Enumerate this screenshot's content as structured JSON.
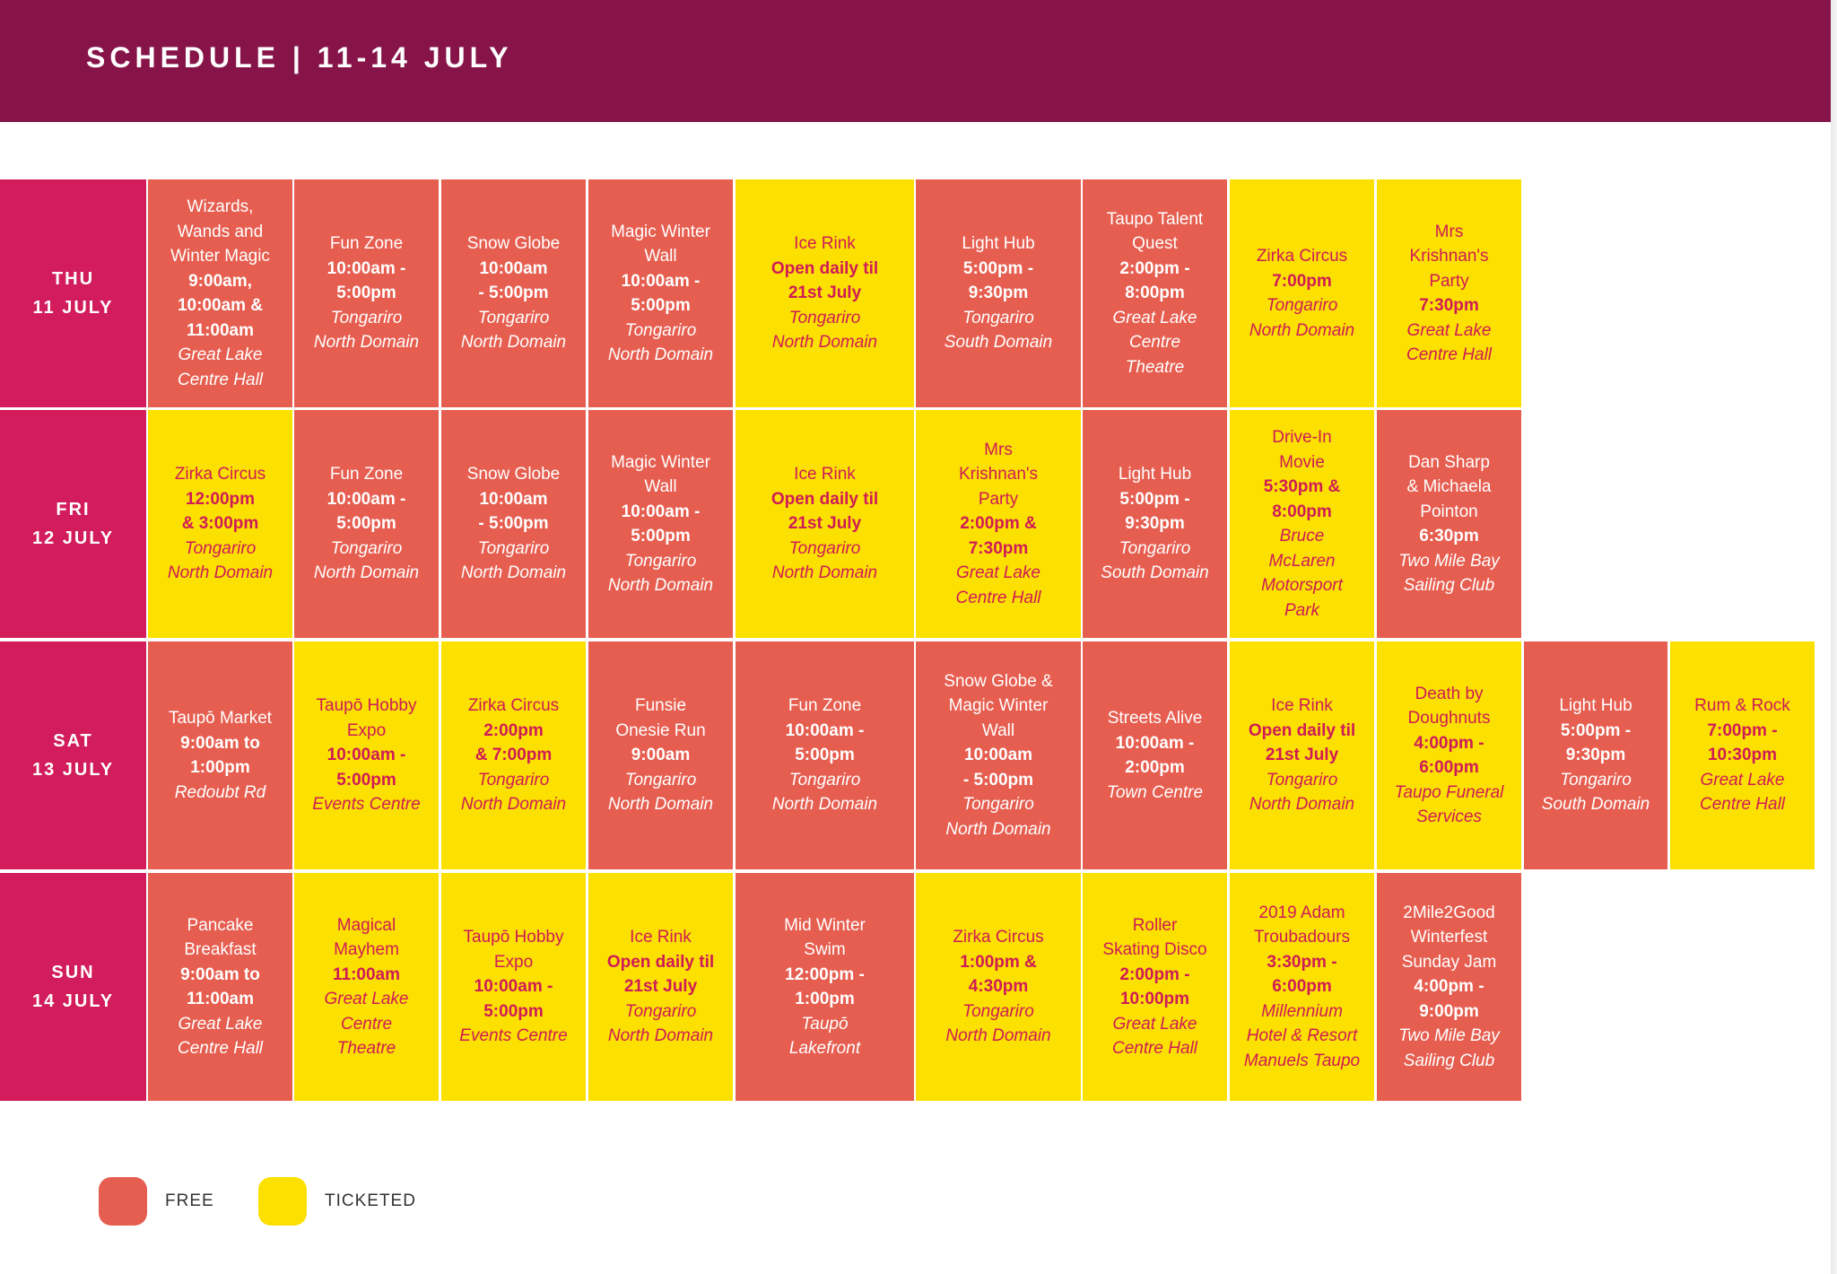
{
  "header": {
    "title": "SCHEDULE | 11-14 JULY"
  },
  "colors": {
    "header_bg": "#861448",
    "day_bg": "#d21c5c",
    "free": "#e65e50",
    "ticketed": "#fce000",
    "ticketed_text": "#cf1b57"
  },
  "days": [
    {
      "day": "THU",
      "date": "11 JULY",
      "events": [
        {
          "type": "free",
          "lines": [
            [
              "n",
              "Wizards,"
            ],
            [
              "n",
              "Wands and"
            ],
            [
              "n",
              "Winter Magic"
            ],
            [
              "t",
              "9:00am,"
            ],
            [
              "t",
              "10:00am &"
            ],
            [
              "t",
              "11:00am"
            ],
            [
              "v",
              "Great Lake"
            ],
            [
              "v",
              "Centre Hall"
            ]
          ]
        },
        {
          "type": "free",
          "lines": [
            [
              "n",
              "Fun Zone"
            ],
            [
              "t",
              "10:00am -"
            ],
            [
              "t",
              "5:00pm"
            ],
            [
              "v",
              "Tongariro"
            ],
            [
              "v",
              "North Domain"
            ]
          ]
        },
        {
          "type": "free",
          "lines": [
            [
              "n",
              "Snow Globe"
            ],
            [
              "t",
              "10:00am"
            ],
            [
              "t",
              "- 5:00pm"
            ],
            [
              "v",
              "Tongariro"
            ],
            [
              "v",
              "North Domain"
            ]
          ]
        },
        {
          "type": "free",
          "lines": [
            [
              "n",
              "Magic Winter"
            ],
            [
              "n",
              "Wall"
            ],
            [
              "t",
              "10:00am -"
            ],
            [
              "t",
              "5:00pm"
            ],
            [
              "v",
              "Tongariro"
            ],
            [
              "v",
              "North Domain"
            ]
          ]
        },
        {
          "type": "ticketed",
          "lines": [
            [
              "n",
              "Ice Rink"
            ],
            [
              "t",
              "Open daily til"
            ],
            [
              "t",
              "21st July"
            ],
            [
              "v",
              "Tongariro"
            ],
            [
              "v",
              "North Domain"
            ]
          ]
        },
        {
          "type": "free",
          "lines": [
            [
              "n",
              "Light Hub"
            ],
            [
              "t",
              "5:00pm -"
            ],
            [
              "t",
              "9:30pm"
            ],
            [
              "v",
              "Tongariro"
            ],
            [
              "v",
              "South Domain"
            ]
          ]
        },
        {
          "type": "free",
          "lines": [
            [
              "n",
              "Taupo Talent"
            ],
            [
              "n",
              "Quest"
            ],
            [
              "t",
              "2:00pm -"
            ],
            [
              "t",
              "8:00pm"
            ],
            [
              "v",
              "Great Lake"
            ],
            [
              "v",
              "Centre"
            ],
            [
              "v",
              "Theatre"
            ]
          ]
        },
        {
          "type": "ticketed",
          "lines": [
            [
              "n",
              "Zirka Circus"
            ],
            [
              "t",
              "7:00pm"
            ],
            [
              "v",
              "Tongariro"
            ],
            [
              "v",
              "North Domain"
            ]
          ]
        },
        {
          "type": "ticketed",
          "lines": [
            [
              "n",
              "Mrs"
            ],
            [
              "n",
              "Krishnan's"
            ],
            [
              "n",
              "Party"
            ],
            [
              "t",
              "7:30pm"
            ],
            [
              "v",
              "Great Lake"
            ],
            [
              "v",
              "Centre Hall"
            ]
          ]
        }
      ]
    },
    {
      "day": "FRI",
      "date": "12 JULY",
      "events": [
        {
          "type": "ticketed",
          "lines": [
            [
              "n",
              "Zirka Circus"
            ],
            [
              "t",
              "12:00pm"
            ],
            [
              "t",
              "& 3:00pm"
            ],
            [
              "v",
              "Tongariro"
            ],
            [
              "v",
              "North Domain"
            ]
          ]
        },
        {
          "type": "free",
          "lines": [
            [
              "n",
              "Fun Zone"
            ],
            [
              "t",
              "10:00am -"
            ],
            [
              "t",
              "5:00pm"
            ],
            [
              "v",
              "Tongariro"
            ],
            [
              "v",
              "North Domain"
            ]
          ]
        },
        {
          "type": "free",
          "lines": [
            [
              "n",
              "Snow Globe"
            ],
            [
              "t",
              "10:00am"
            ],
            [
              "t",
              "- 5:00pm"
            ],
            [
              "v",
              "Tongariro"
            ],
            [
              "v",
              "North Domain"
            ]
          ]
        },
        {
          "type": "free",
          "lines": [
            [
              "n",
              "Magic Winter"
            ],
            [
              "n",
              "Wall"
            ],
            [
              "t",
              "10:00am -"
            ],
            [
              "t",
              "5:00pm"
            ],
            [
              "v",
              "Tongariro"
            ],
            [
              "v",
              "North Domain"
            ]
          ]
        },
        {
          "type": "ticketed",
          "lines": [
            [
              "n",
              "Ice Rink"
            ],
            [
              "t",
              "Open daily til"
            ],
            [
              "t",
              "21st July"
            ],
            [
              "v",
              "Tongariro"
            ],
            [
              "v",
              "North Domain"
            ]
          ]
        },
        {
          "type": "ticketed",
          "lines": [
            [
              "n",
              "Mrs"
            ],
            [
              "n",
              "Krishnan's"
            ],
            [
              "n",
              "Party"
            ],
            [
              "t",
              "2:00pm &"
            ],
            [
              "t",
              "7:30pm"
            ],
            [
              "v",
              "Great Lake"
            ],
            [
              "v",
              "Centre Hall"
            ]
          ]
        },
        {
          "type": "free",
          "lines": [
            [
              "n",
              "Light Hub"
            ],
            [
              "t",
              "5:00pm -"
            ],
            [
              "t",
              "9:30pm"
            ],
            [
              "v",
              "Tongariro"
            ],
            [
              "v",
              "South Domain"
            ]
          ]
        },
        {
          "type": "ticketed",
          "lines": [
            [
              "n",
              "Drive-In"
            ],
            [
              "n",
              "Movie"
            ],
            [
              "t",
              "5:30pm &"
            ],
            [
              "t",
              "8:00pm"
            ],
            [
              "v",
              "Bruce"
            ],
            [
              "v",
              "McLaren"
            ],
            [
              "v",
              "Motorsport"
            ],
            [
              "v",
              "Park"
            ]
          ]
        },
        {
          "type": "free",
          "lines": [
            [
              "n",
              "Dan Sharp"
            ],
            [
              "n",
              "& Michaela"
            ],
            [
              "n",
              "Pointon"
            ],
            [
              "t",
              "6:30pm"
            ],
            [
              "v",
              "Two Mile Bay"
            ],
            [
              "v",
              "Sailing Club"
            ]
          ]
        }
      ]
    },
    {
      "day": "SAT",
      "date": "13 JULY",
      "events": [
        {
          "type": "free",
          "lines": [
            [
              "n",
              "Taupō Market"
            ],
            [
              "t",
              "9:00am to"
            ],
            [
              "t",
              "1:00pm"
            ],
            [
              "v",
              "Redoubt Rd"
            ]
          ]
        },
        {
          "type": "ticketed",
          "lines": [
            [
              "n",
              "Taupō Hobby"
            ],
            [
              "n",
              "Expo"
            ],
            [
              "t",
              "10:00am -"
            ],
            [
              "t",
              "5:00pm"
            ],
            [
              "v",
              "Events Centre"
            ]
          ]
        },
        {
          "type": "ticketed",
          "lines": [
            [
              "n",
              "Zirka Circus"
            ],
            [
              "t",
              "2:00pm"
            ],
            [
              "t",
              "& 7:00pm"
            ],
            [
              "v",
              "Tongariro"
            ],
            [
              "v",
              "North Domain"
            ]
          ]
        },
        {
          "type": "free",
          "lines": [
            [
              "n",
              "Funsie"
            ],
            [
              "n",
              "Onesie Run"
            ],
            [
              "t",
              "9:00am"
            ],
            [
              "v",
              "Tongariro"
            ],
            [
              "v",
              "North Domain"
            ]
          ]
        },
        {
          "type": "free",
          "lines": [
            [
              "n",
              "Fun Zone"
            ],
            [
              "t",
              "10:00am -"
            ],
            [
              "t",
              "5:00pm"
            ],
            [
              "v",
              "Tongariro"
            ],
            [
              "v",
              "North Domain"
            ]
          ]
        },
        {
          "type": "free",
          "lines": [
            [
              "n",
              "Snow Globe &"
            ],
            [
              "n",
              "Magic Winter"
            ],
            [
              "n",
              "Wall"
            ],
            [
              "t",
              "10:00am"
            ],
            [
              "t",
              "- 5:00pm"
            ],
            [
              "v",
              "Tongariro"
            ],
            [
              "v",
              "North Domain"
            ]
          ]
        },
        {
          "type": "free",
          "lines": [
            [
              "n",
              "Streets Alive"
            ],
            [
              "t",
              "10:00am -"
            ],
            [
              "t",
              "2:00pm"
            ],
            [
              "v",
              "Town Centre"
            ]
          ]
        },
        {
          "type": "ticketed",
          "lines": [
            [
              "n",
              "Ice Rink"
            ],
            [
              "t",
              "Open daily til"
            ],
            [
              "t",
              "21st July"
            ],
            [
              "v",
              "Tongariro"
            ],
            [
              "v",
              "North Domain"
            ]
          ]
        },
        {
          "type": "ticketed",
          "lines": [
            [
              "n",
              "Death by"
            ],
            [
              "n",
              "Doughnuts"
            ],
            [
              "t",
              "4:00pm -"
            ],
            [
              "t",
              "6:00pm"
            ],
            [
              "v",
              "Taupo Funeral"
            ],
            [
              "v",
              "Services"
            ]
          ]
        },
        {
          "type": "free",
          "lines": [
            [
              "n",
              "Light Hub"
            ],
            [
              "t",
              "5:00pm -"
            ],
            [
              "t",
              "9:30pm"
            ],
            [
              "v",
              "Tongariro"
            ],
            [
              "v",
              "South Domain"
            ]
          ]
        },
        {
          "type": "ticketed",
          "lines": [
            [
              "n",
              "Rum & Rock"
            ],
            [
              "t",
              "7:00pm -"
            ],
            [
              "t",
              "10:30pm"
            ],
            [
              "v",
              "Great Lake"
            ],
            [
              "v",
              "Centre Hall"
            ]
          ]
        }
      ]
    },
    {
      "day": "SUN",
      "date": "14 JULY",
      "events": [
        {
          "type": "free",
          "lines": [
            [
              "n",
              "Pancake"
            ],
            [
              "n",
              "Breakfast"
            ],
            [
              "t",
              "9:00am to"
            ],
            [
              "t",
              "11:00am"
            ],
            [
              "v",
              "Great Lake"
            ],
            [
              "v",
              "Centre Hall"
            ]
          ]
        },
        {
          "type": "ticketed",
          "lines": [
            [
              "n",
              "Magical"
            ],
            [
              "n",
              "Mayhem"
            ],
            [
              "t",
              "11:00am"
            ],
            [
              "v",
              "Great Lake"
            ],
            [
              "v",
              "Centre"
            ],
            [
              "v",
              "Theatre"
            ]
          ]
        },
        {
          "type": "ticketed",
          "lines": [
            [
              "n",
              "Taupō Hobby"
            ],
            [
              "n",
              "Expo"
            ],
            [
              "t",
              "10:00am -"
            ],
            [
              "t",
              "5:00pm"
            ],
            [
              "v",
              "Events Centre"
            ]
          ]
        },
        {
          "type": "ticketed",
          "lines": [
            [
              "n",
              "Ice Rink"
            ],
            [
              "t",
              "Open daily til"
            ],
            [
              "t",
              "21st July"
            ],
            [
              "v",
              "Tongariro"
            ],
            [
              "v",
              "North Domain"
            ]
          ]
        },
        {
          "type": "free",
          "lines": [
            [
              "n",
              "Mid Winter"
            ],
            [
              "n",
              "Swim"
            ],
            [
              "t",
              "12:00pm -"
            ],
            [
              "t",
              "1:00pm"
            ],
            [
              "v",
              "Taupō"
            ],
            [
              "v",
              "Lakefront"
            ]
          ]
        },
        {
          "type": "ticketed",
          "lines": [
            [
              "n",
              "Zirka Circus"
            ],
            [
              "t",
              "1:00pm &"
            ],
            [
              "t",
              "4:30pm"
            ],
            [
              "v",
              "Tongariro"
            ],
            [
              "v",
              "North Domain"
            ]
          ]
        },
        {
          "type": "ticketed",
          "lines": [
            [
              "n",
              "Roller"
            ],
            [
              "n",
              "Skating Disco"
            ],
            [
              "t",
              "2:00pm -"
            ],
            [
              "t",
              "10:00pm"
            ],
            [
              "v",
              "Great Lake"
            ],
            [
              "v",
              "Centre Hall"
            ]
          ]
        },
        {
          "type": "ticketed",
          "lines": [
            [
              "n",
              "2019 Adam"
            ],
            [
              "n",
              "Troubadours"
            ],
            [
              "t",
              "3:30pm -"
            ],
            [
              "t",
              "6:00pm"
            ],
            [
              "v",
              "Millennium"
            ],
            [
              "v",
              "Hotel & Resort"
            ],
            [
              "v",
              "Manuels Taupo"
            ]
          ]
        },
        {
          "type": "free",
          "lines": [
            [
              "n",
              "2Mile2Good"
            ],
            [
              "n",
              "Winterfest"
            ],
            [
              "n",
              "Sunday Jam"
            ],
            [
              "t",
              "4:00pm -"
            ],
            [
              "t",
              "9:00pm"
            ],
            [
              "v",
              "Two Mile Bay"
            ],
            [
              "v",
              "Sailing Club"
            ]
          ]
        }
      ]
    }
  ],
  "legend": {
    "free_label": "FREE",
    "ticketed_label": "TICKETED"
  }
}
